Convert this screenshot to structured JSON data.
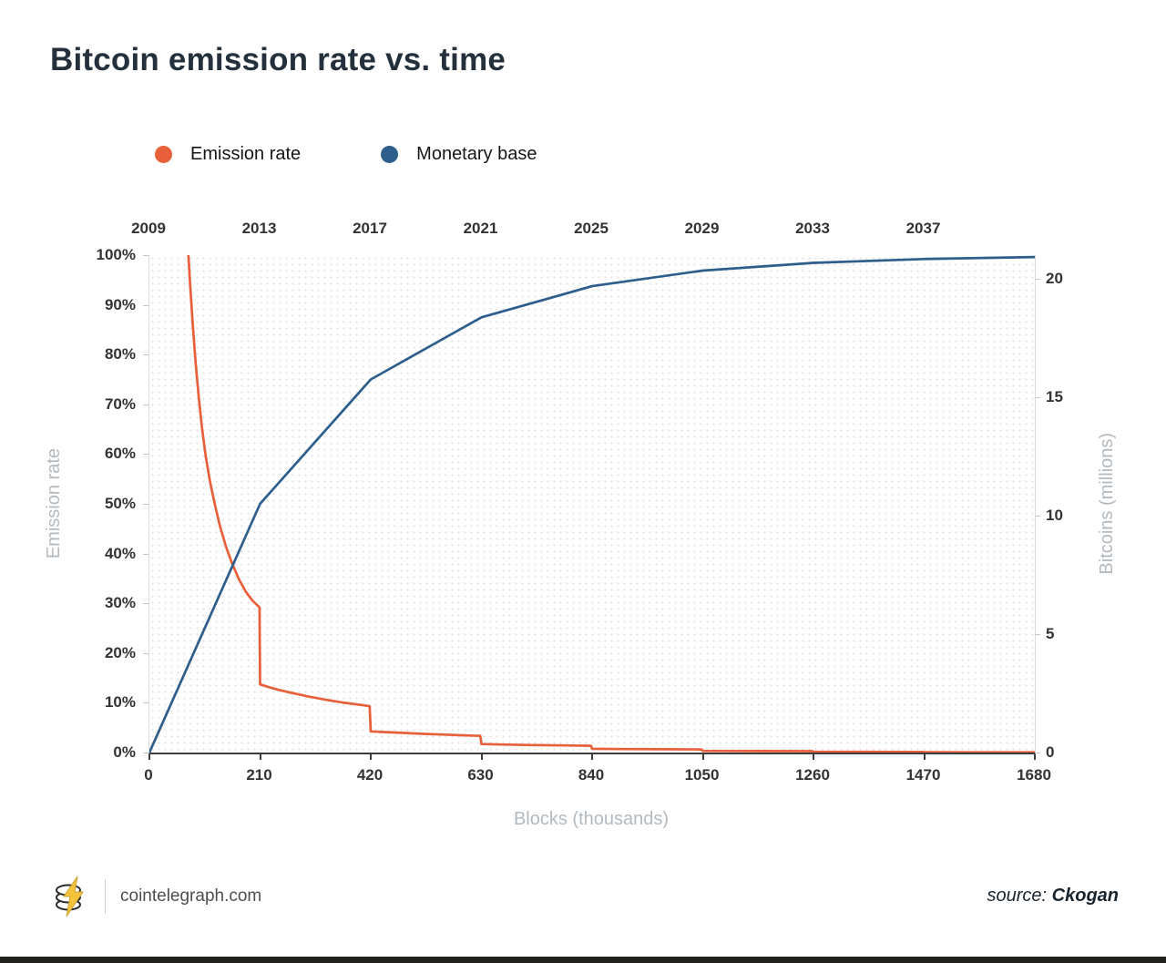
{
  "page": {
    "title": "Bitcoin emission rate vs. time",
    "footer": {
      "site": "cointelegraph.com",
      "source_label": "source:",
      "source_name": "Ckogan"
    }
  },
  "legend": [
    {
      "label": "Emission rate",
      "color": "#e8603a"
    },
    {
      "label": "Monetary base",
      "color": "#2e5e8c"
    }
  ],
  "chart_data": {
    "type": "line",
    "title": "Bitcoin emission rate vs. time",
    "legend_position": "top",
    "grid": "fine-dot",
    "x_axis": {
      "label": "Blocks (thousands)",
      "range": [
        0,
        1680
      ],
      "ticks": [
        0,
        210,
        420,
        630,
        840,
        1050,
        1260,
        1470,
        1680
      ]
    },
    "top_axis": {
      "unit": "year",
      "ticks": [
        {
          "label": "2009",
          "block": 0
        },
        {
          "label": "2013",
          "block": 210
        },
        {
          "label": "2017",
          "block": 420
        },
        {
          "label": "2021",
          "block": 630
        },
        {
          "label": "2025",
          "block": 840
        },
        {
          "label": "2029",
          "block": 1050
        },
        {
          "label": "2033",
          "block": 1260
        },
        {
          "label": "2037",
          "block": 1470
        }
      ]
    },
    "y_left": {
      "label": "Emission rate",
      "range": [
        0,
        100
      ],
      "ticks_percent": [
        0,
        10,
        20,
        30,
        40,
        50,
        60,
        70,
        80,
        90,
        100
      ]
    },
    "y_right": {
      "label": "Bitcoins (millions)",
      "ticks_millions": [
        0,
        5,
        10,
        15,
        20
      ],
      "max_millions": 21
    },
    "series": [
      {
        "name": "Emission rate",
        "color": "#e8603a",
        "axis": "left",
        "points": [
          [
            74,
            100
          ],
          [
            78,
            93
          ],
          [
            83,
            85
          ],
          [
            88,
            78
          ],
          [
            94,
            71
          ],
          [
            100,
            65
          ],
          [
            107,
            59.5
          ],
          [
            115,
            54.5
          ],
          [
            124,
            50
          ],
          [
            134,
            45.5
          ],
          [
            145,
            41.5
          ],
          [
            157,
            38
          ],
          [
            170,
            34.8
          ],
          [
            183,
            32.3
          ],
          [
            196,
            30.5
          ],
          [
            209,
            29.2
          ],
          [
            210,
            13.7
          ],
          [
            225,
            13.2
          ],
          [
            245,
            12.6
          ],
          [
            270,
            12
          ],
          [
            300,
            11.3
          ],
          [
            335,
            10.6
          ],
          [
            370,
            10
          ],
          [
            400,
            9.6
          ],
          [
            418,
            9.3
          ],
          [
            420,
            4.25
          ],
          [
            450,
            4.1
          ],
          [
            480,
            3.95
          ],
          [
            520,
            3.75
          ],
          [
            560,
            3.6
          ],
          [
            600,
            3.45
          ],
          [
            628,
            3.35
          ],
          [
            630,
            1.7
          ],
          [
            680,
            1.6
          ],
          [
            730,
            1.5
          ],
          [
            790,
            1.42
          ],
          [
            838,
            1.35
          ],
          [
            840,
            0.75
          ],
          [
            900,
            0.7
          ],
          [
            980,
            0.66
          ],
          [
            1048,
            0.63
          ],
          [
            1050,
            0.33
          ],
          [
            1150,
            0.3
          ],
          [
            1258,
            0.28
          ],
          [
            1260,
            0.16
          ],
          [
            1360,
            0.14
          ],
          [
            1468,
            0.13
          ],
          [
            1470,
            0.07
          ],
          [
            1560,
            0.06
          ],
          [
            1680,
            0.05
          ]
        ]
      },
      {
        "name": "Monetary base",
        "color": "#2e5e8c",
        "axis": "left",
        "points": [
          [
            0,
            0
          ],
          [
            210,
            50
          ],
          [
            420,
            75
          ],
          [
            630,
            87.5
          ],
          [
            840,
            93.75
          ],
          [
            1050,
            96.88
          ],
          [
            1260,
            98.44
          ],
          [
            1470,
            99.22
          ],
          [
            1680,
            99.61
          ]
        ]
      }
    ]
  }
}
